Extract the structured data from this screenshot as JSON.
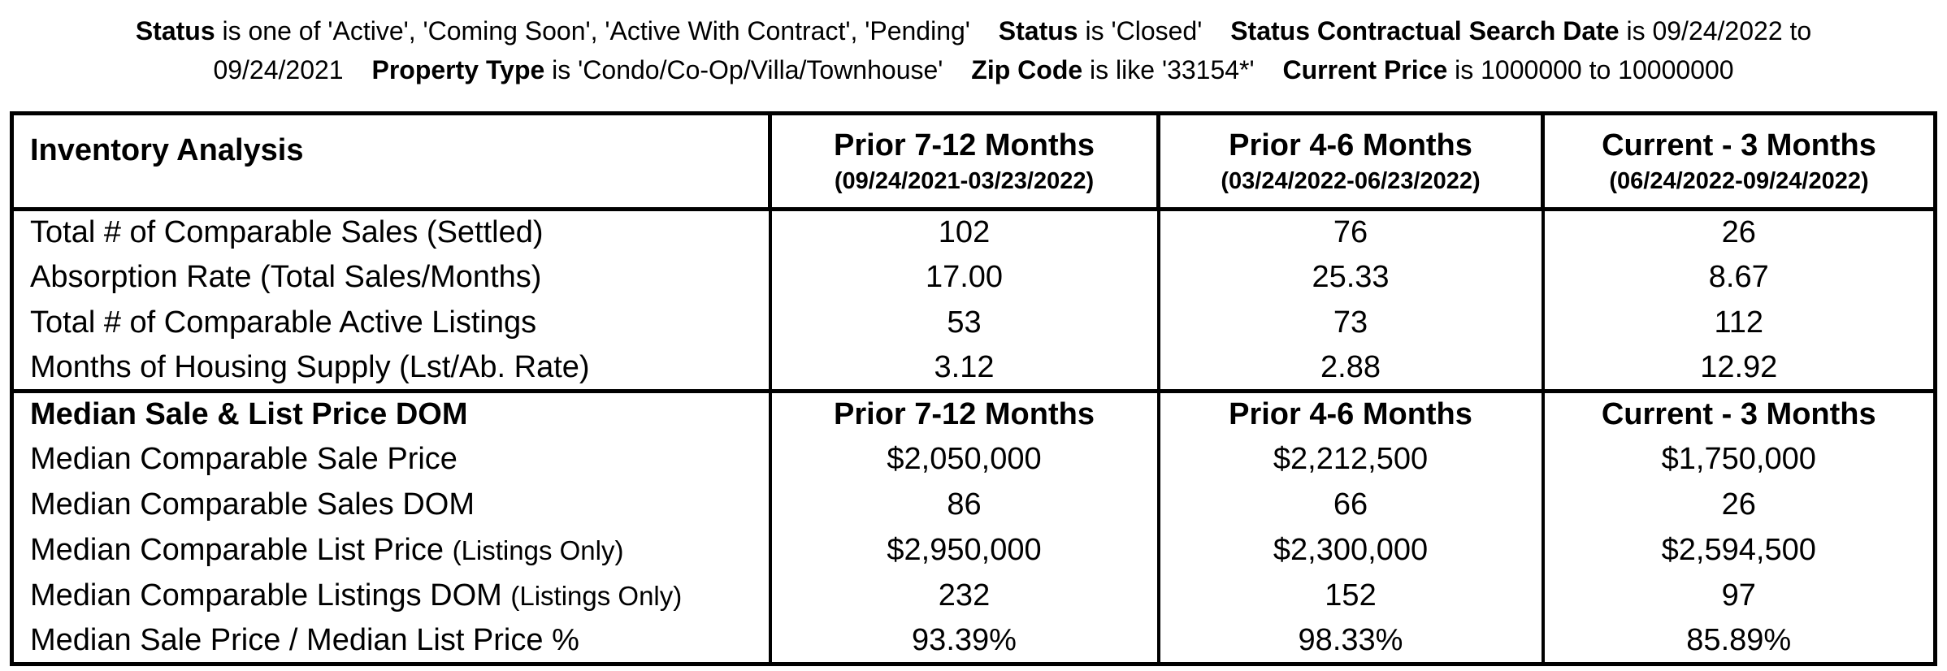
{
  "criteria": {
    "line1": {
      "status_label_1": "Status",
      "status_text_1": "is one of 'Active', 'Coming Soon', 'Active With Contract', 'Pending'",
      "status_label_2": "Status",
      "status_text_2": "is 'Closed'",
      "contract_label": "Status Contractual Search Date",
      "contract_text": "is 09/24/2022 to"
    },
    "line2": {
      "date_cont": "09/24/2021",
      "property_label": "Property Type",
      "property_text": "is 'Condo/Co-Op/Villa/Townhouse'",
      "zip_label": "Zip Code",
      "zip_text": "is like '33154*'",
      "price_label": "Current Price",
      "price_text": "is 1000000 to 10000000"
    }
  },
  "table": {
    "header": {
      "title": "Inventory Analysis",
      "columns": [
        {
          "label": "Prior 7-12 Months",
          "range": "(09/24/2021-03/23/2022)"
        },
        {
          "label": "Prior 4-6 Months",
          "range": "(03/24/2022-06/23/2022)"
        },
        {
          "label": "Current - 3 Months",
          "range": "(06/24/2022-09/24/2022)"
        }
      ]
    },
    "inventory_rows": [
      {
        "label": "Total # of Comparable Sales (Settled)",
        "values": [
          "102",
          "76",
          "26"
        ]
      },
      {
        "label": "Absorption Rate (Total Sales/Months)",
        "values": [
          "17.00",
          "25.33",
          "8.67"
        ]
      },
      {
        "label": "Total # of Comparable Active Listings",
        "values": [
          "53",
          "73",
          "112"
        ]
      },
      {
        "label": "Months of Housing Supply (Lst/Ab. Rate)",
        "values": [
          "3.12",
          "2.88",
          "12.92"
        ]
      }
    ],
    "section2": {
      "title": "Median Sale & List Price DOM",
      "columns": [
        "Prior 7-12 Months",
        "Prior 4-6 Months",
        "Current - 3 Months"
      ]
    },
    "median_rows": [
      {
        "label": "Median Comparable Sale Price",
        "suffix": "",
        "values": [
          "$2,050,000",
          "$2,212,500",
          "$1,750,000"
        ]
      },
      {
        "label": "Median Comparable Sales DOM",
        "suffix": "",
        "values": [
          "86",
          "66",
          "26"
        ]
      },
      {
        "label": "Median Comparable List Price ",
        "suffix": "(Listings Only)",
        "values": [
          "$2,950,000",
          "$2,300,000",
          "$2,594,500"
        ]
      },
      {
        "label": "Median Comparable Listings DOM ",
        "suffix": "(Listings Only)",
        "values": [
          "232",
          "152",
          "97"
        ]
      },
      {
        "label": "Median Sale Price / Median List Price %",
        "suffix": "",
        "values": [
          "93.39%",
          "98.33%",
          "85.89%"
        ]
      }
    ]
  }
}
